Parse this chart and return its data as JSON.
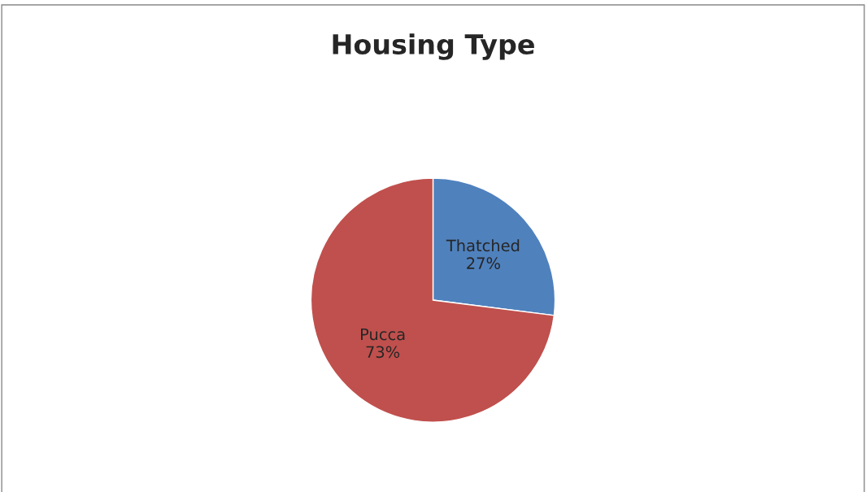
{
  "chart_data": {
    "type": "pie",
    "title": "Housing Type",
    "categories": [
      "Thatched",
      "Pucca"
    ],
    "values": [
      27,
      73
    ],
    "colors": [
      "#4f81bd",
      "#c0504d"
    ],
    "value_labels": [
      "27%",
      "73%"
    ],
    "legend": false
  }
}
